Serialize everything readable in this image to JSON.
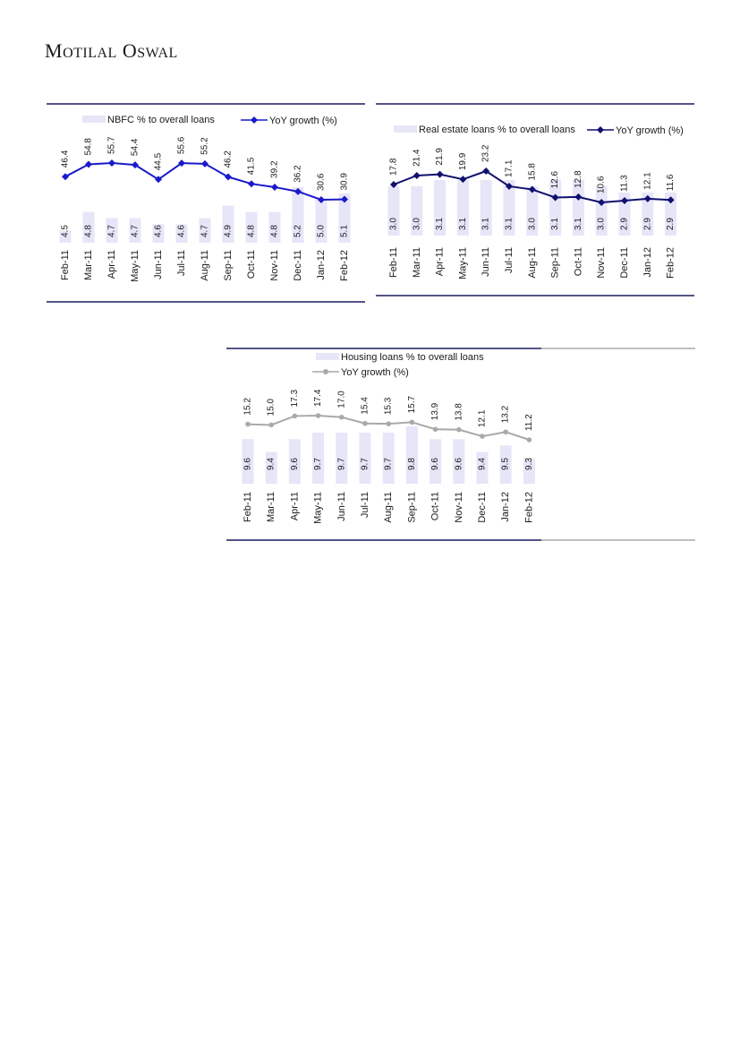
{
  "brand": {
    "word1_initial": "M",
    "word1_rest": "OTILAL",
    "word2_initial": "O",
    "word2_rest": "SWAL"
  },
  "colors": {
    "bar": "#e6e6f8",
    "nbfc_line": "#1a1acc",
    "realestate_line": "#10106e",
    "housing_line": "#a9a9a9",
    "rule": "#1c1c60",
    "text": "#1a1a1a"
  },
  "chart_data": [
    {
      "type": "bar",
      "categories": [
        "Feb-11",
        "Mar-11",
        "Apr-11",
        "May-11",
        "Jun-11",
        "Jul-11",
        "Aug-11",
        "Sep-11",
        "Oct-11",
        "Nov-11",
        "Dec-11",
        "Jan-12",
        "Feb-12"
      ],
      "series": [
        {
          "name": "NBFC % to overall loans",
          "type": "bar",
          "values": [
            4.5,
            4.8,
            4.7,
            4.7,
            4.6,
            4.6,
            4.7,
            4.9,
            4.8,
            4.8,
            5.2,
            5.0,
            5.1
          ]
        },
        {
          "name": "YoY growth (%)",
          "type": "line",
          "values": [
            46.4,
            54.8,
            55.7,
            54.4,
            44.5,
            55.6,
            55.2,
            46.2,
            41.5,
            39.2,
            36.2,
            30.6,
            30.9
          ]
        }
      ],
      "legend_position": "top"
    },
    {
      "type": "bar",
      "categories": [
        "Feb-11",
        "Mar-11",
        "Apr-11",
        "May-11",
        "Jun-11",
        "Jul-11",
        "Aug-11",
        "Sep-11",
        "Oct-11",
        "Nov-11",
        "Dec-11",
        "Jan-12",
        "Feb-12"
      ],
      "series": [
        {
          "name": "Real estate loans % to overall loans",
          "type": "bar",
          "values": [
            3.0,
            3.0,
            3.1,
            3.1,
            3.1,
            3.1,
            3.0,
            3.1,
            3.1,
            3.0,
            2.9,
            2.9,
            2.9
          ]
        },
        {
          "name": "YoY growth (%)",
          "type": "line",
          "values": [
            17.8,
            21.4,
            21.9,
            19.9,
            23.2,
            17.1,
            15.8,
            12.6,
            12.8,
            10.6,
            11.3,
            12.1,
            11.6
          ]
        }
      ],
      "legend_position": "top"
    },
    {
      "type": "bar",
      "categories": [
        "Feb-11",
        "Mar-11",
        "Apr-11",
        "May-11",
        "Jun-11",
        "Jul-11",
        "Aug-11",
        "Sep-11",
        "Oct-11",
        "Nov-11",
        "Dec-11",
        "Jan-12",
        "Feb-12"
      ],
      "series": [
        {
          "name": "Housing loans % to overall loans",
          "type": "bar",
          "values": [
            9.6,
            9.4,
            9.6,
            9.7,
            9.7,
            9.7,
            9.7,
            9.8,
            9.6,
            9.6,
            9.4,
            9.5,
            9.3
          ]
        },
        {
          "name": "YoY growth (%)",
          "type": "line",
          "values": [
            15.2,
            15.0,
            17.3,
            17.4,
            17.0,
            15.4,
            15.3,
            15.7,
            13.9,
            13.8,
            12.1,
            13.2,
            11.2
          ]
        }
      ],
      "legend_position": "top"
    }
  ]
}
